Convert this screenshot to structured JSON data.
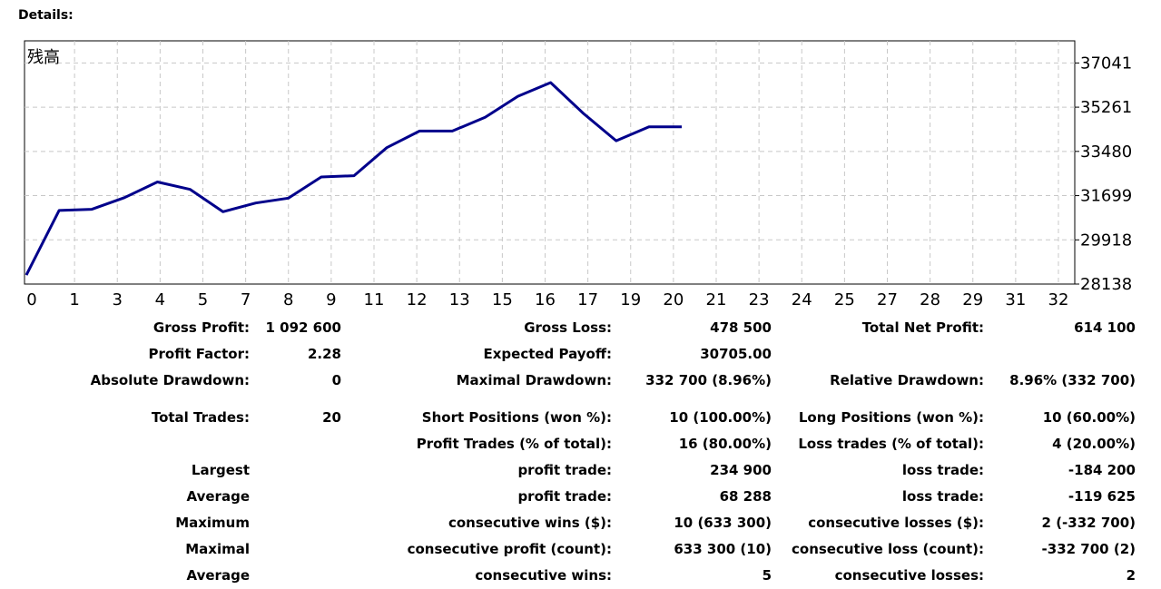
{
  "section_title": "Details:",
  "chart_data": {
    "type": "line",
    "title": "残高",
    "x_ticks": [
      "0",
      "1",
      "3",
      "4",
      "5",
      "7",
      "8",
      "9",
      "11",
      "12",
      "13",
      "15",
      "16",
      "17",
      "19",
      "20",
      "21",
      "23",
      "24",
      "25",
      "27",
      "28",
      "29",
      "31",
      "32"
    ],
    "y_ticks": [
      "37041",
      "35261",
      "33480",
      "31699",
      "29918",
      "28138"
    ],
    "ylim": [
      28138,
      37932
    ],
    "grid": true,
    "series": [
      {
        "color": "#00008B",
        "points": [
          [
            0,
            28500
          ],
          [
            1,
            31100
          ],
          [
            2,
            31150
          ],
          [
            3,
            31620
          ],
          [
            4,
            32250
          ],
          [
            5,
            31950
          ],
          [
            6,
            31050
          ],
          [
            7,
            31400
          ],
          [
            8,
            31600
          ],
          [
            9,
            32450
          ],
          [
            10,
            32500
          ],
          [
            11,
            33630
          ],
          [
            12,
            34300
          ],
          [
            13,
            34300
          ],
          [
            14,
            34850
          ],
          [
            15,
            35700
          ],
          [
            16,
            36250
          ],
          [
            17,
            35010
          ],
          [
            18,
            33910
          ],
          [
            19,
            34470
          ],
          [
            20,
            34470
          ]
        ]
      }
    ]
  },
  "stats": {
    "gross_profit_label": "Gross Profit:",
    "gross_profit": "1 092 600",
    "gross_loss_label": "Gross Loss:",
    "gross_loss": "478 500",
    "total_net_profit_label": "Total Net Profit:",
    "total_net_profit": "614 100",
    "profit_factor_label": "Profit Factor:",
    "profit_factor": "2.28",
    "expected_payoff_label": "Expected Payoff:",
    "expected_payoff": "30705.00",
    "absolute_drawdown_label": "Absolute Drawdown:",
    "absolute_drawdown": "0",
    "maximal_drawdown_label": "Maximal Drawdown:",
    "maximal_drawdown": "332 700 (8.96%)",
    "relative_drawdown_label": "Relative Drawdown:",
    "relative_drawdown": "8.96% (332 700)",
    "total_trades_label": "Total Trades:",
    "total_trades": "20",
    "short_positions_label": "Short Positions (won %):",
    "short_positions": "10 (100.00%)",
    "long_positions_label": "Long Positions (won %):",
    "long_positions": "10 (60.00%)",
    "profit_trades_label": "Profit Trades (% of total):",
    "profit_trades": "16 (80.00%)",
    "loss_trades_label": "Loss trades (% of total):",
    "loss_trades": "4 (20.00%)",
    "largest_label": "Largest",
    "largest_profit_label": "profit trade:",
    "largest_profit": "234 900",
    "largest_loss_label": "loss trade:",
    "largest_loss": "-184 200",
    "average_label": "Average",
    "average_profit_label": "profit trade:",
    "average_profit": "68 288",
    "average_loss_label": "loss trade:",
    "average_loss": "-119 625",
    "maximum_label": "Maximum",
    "max_consec_wins_label": "consecutive wins ($):",
    "max_consec_wins": "10 (633 300)",
    "max_consec_losses_label": "consecutive losses ($):",
    "max_consec_losses": "2 (-332 700)",
    "maximal_label": "Maximal",
    "maximal_consec_profit_label": "consecutive profit (count):",
    "maximal_consec_profit": "633 300 (10)",
    "maximal_consec_loss_label": "consecutive loss (count):",
    "maximal_consec_loss": "-332 700 (2)",
    "average2_label": "Average",
    "avg_consec_wins_label": "consecutive wins:",
    "avg_consec_wins": "5",
    "avg_consec_losses_label": "consecutive losses:",
    "avg_consec_losses": "2"
  }
}
